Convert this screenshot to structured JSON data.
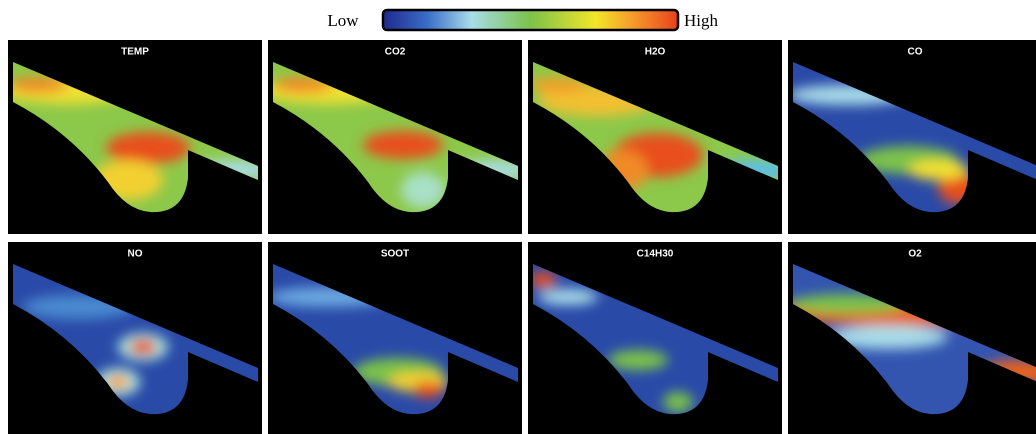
{
  "colorbar": {
    "low_label": "Low",
    "high_label": "High"
  },
  "panels": [
    {
      "title": "TEMP"
    },
    {
      "title": "CO2"
    },
    {
      "title": "H2O"
    },
    {
      "title": "CO"
    },
    {
      "title": "NO"
    },
    {
      "title": "SOOT"
    },
    {
      "title": "C14H30"
    },
    {
      "title": "O2"
    }
  ]
}
